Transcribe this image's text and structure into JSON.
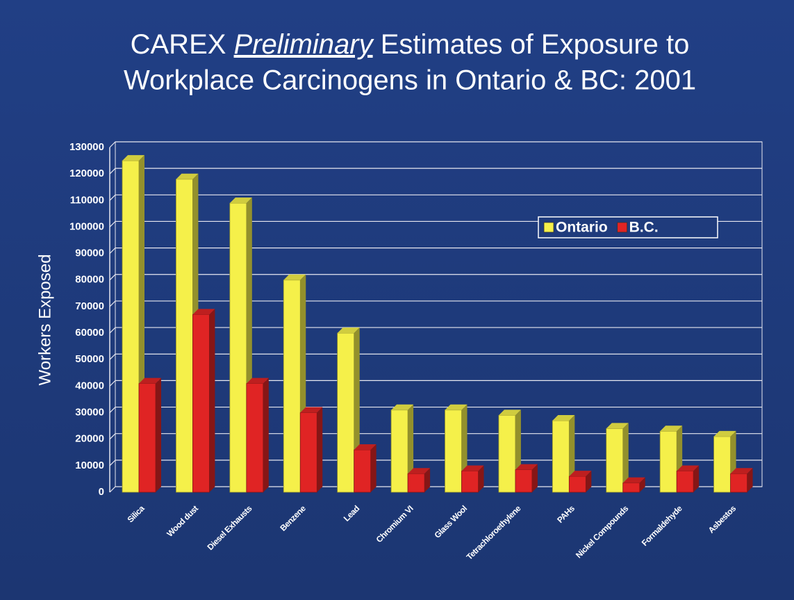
{
  "chart_data": {
    "type": "bar",
    "title": [
      "CAREX",
      "Preliminary",
      "Estimates of Exposure to",
      "Workplace Carcinogens in Ontario & BC: 2001"
    ],
    "ylabel": "Workers Exposed",
    "categories": [
      "Silica",
      "Wood dust",
      "Diesel Exhausts",
      "Benzene",
      "Lead",
      "Chromium VI",
      "Glass Wool",
      "Tetrachloroethylene",
      "PAHs",
      "Nickel Compounds",
      "Formaldehyde",
      "Asbestos"
    ],
    "series": [
      {
        "name": "Ontario",
        "color": "#f5f04a",
        "values": [
          125000,
          118000,
          109000,
          80000,
          60000,
          31000,
          31000,
          29000,
          27000,
          24000,
          23000,
          21000
        ]
      },
      {
        "name": "B.C.",
        "color": "#e02424",
        "values": [
          41000,
          67000,
          41000,
          30000,
          16000,
          7000,
          8000,
          8500,
          6000,
          3500,
          8000,
          7000
        ]
      }
    ],
    "ylim": [
      0,
      130000
    ],
    "yticks": [
      0,
      10000,
      20000,
      30000,
      40000,
      50000,
      60000,
      70000,
      80000,
      90000,
      100000,
      110000,
      120000,
      130000
    ],
    "grid": true,
    "legend": "upper right"
  }
}
